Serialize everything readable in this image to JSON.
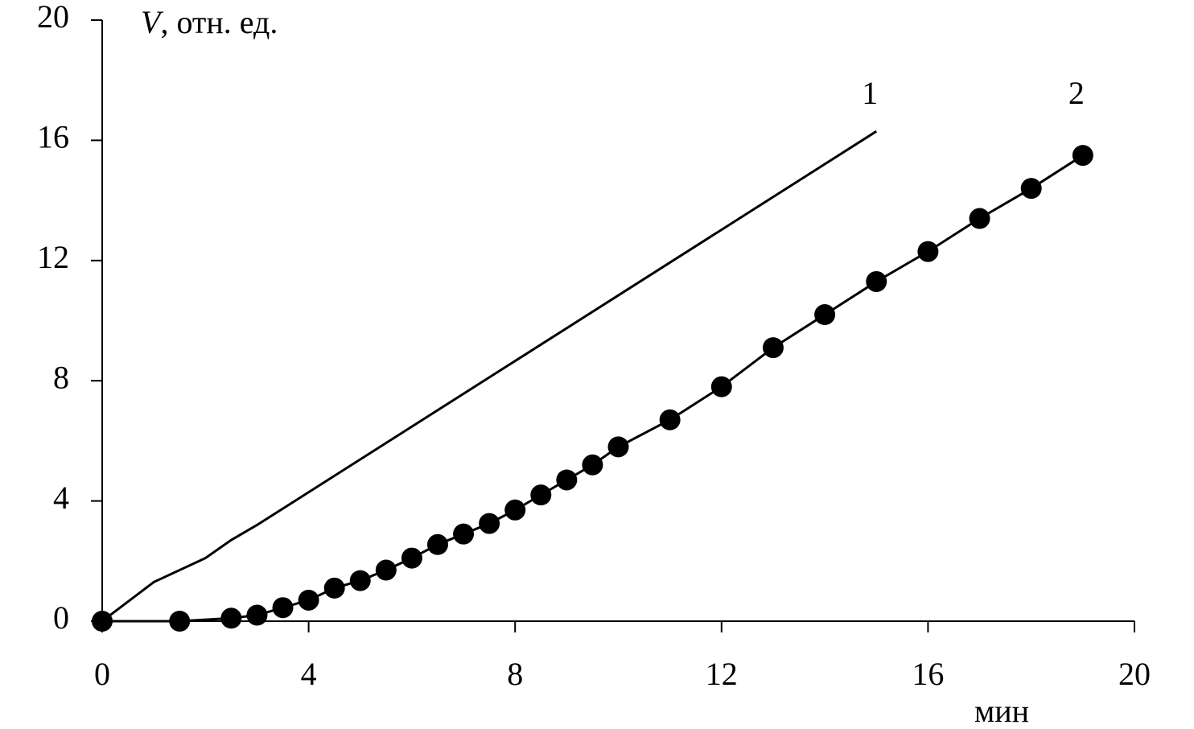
{
  "chart_data": {
    "type": "line",
    "y_label_var": "V",
    "y_label_unit": ", отн. ед.",
    "xlabel": "мин",
    "xlim": [
      0,
      20
    ],
    "xticks": [
      0,
      4,
      8,
      12,
      16,
      20
    ],
    "ylim": [
      0,
      20
    ],
    "yticks": [
      0,
      4,
      8,
      12,
      16,
      20
    ],
    "series": [
      {
        "name": "1",
        "color": "#000000",
        "markers": false,
        "x": [
          0,
          1,
          2,
          2.5,
          3,
          15
        ],
        "values": [
          0,
          1.3,
          2.1,
          2.7,
          3.2,
          16.3
        ]
      },
      {
        "name": "2",
        "color": "#000000",
        "markers": true,
        "x": [
          0,
          1.5,
          2.5,
          3,
          3.5,
          4,
          4.5,
          5,
          5.5,
          6,
          6.5,
          7,
          7.5,
          8,
          8.5,
          9,
          9.5,
          10,
          11,
          12,
          13,
          14,
          15,
          16,
          17,
          18,
          19
        ],
        "values": [
          0,
          0,
          0.1,
          0.2,
          0.45,
          0.7,
          1.1,
          1.35,
          1.7,
          2.1,
          2.55,
          2.9,
          3.25,
          3.7,
          4.2,
          4.7,
          5.2,
          5.8,
          6.7,
          7.8,
          9.1,
          10.2,
          11.3,
          12.3,
          13.4,
          14.4,
          15.5
        ]
      }
    ]
  }
}
